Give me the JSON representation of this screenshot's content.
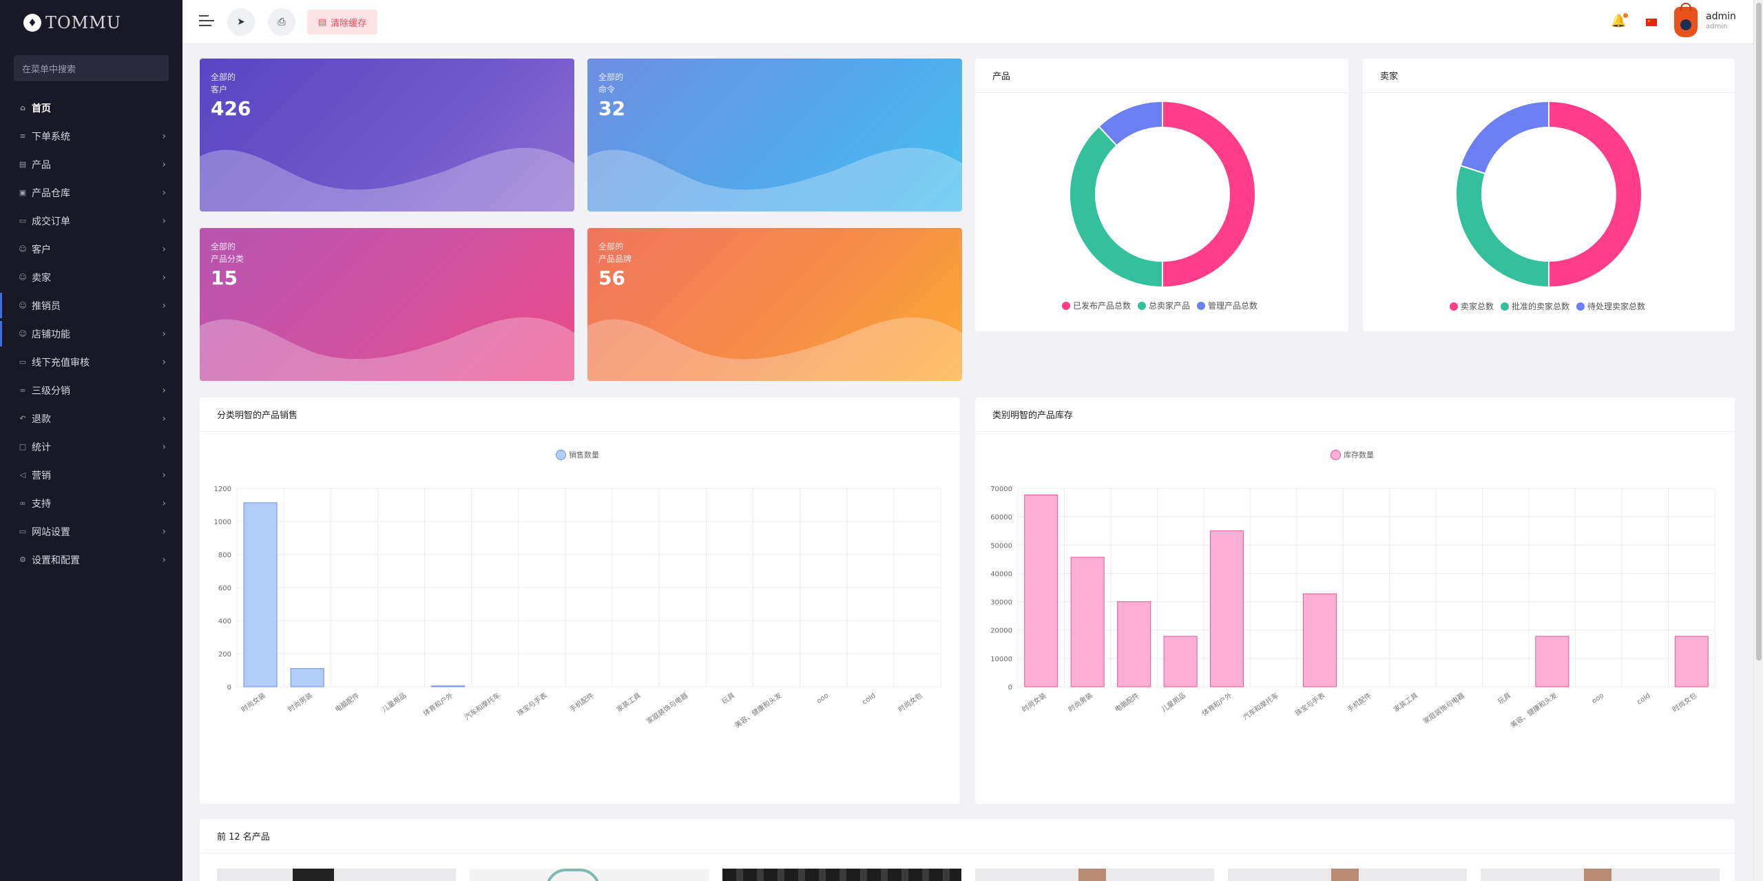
{
  "brand": {
    "name": "TOMMU"
  },
  "sidebar": {
    "search_placeholder": "在菜单中搜索",
    "items": [
      {
        "label": "首页",
        "icon": "home-icon"
      },
      {
        "label": "下单系统",
        "icon": "list-icon"
      },
      {
        "label": "产品",
        "icon": "cart-icon"
      },
      {
        "label": "产品仓库",
        "icon": "warehouse-icon"
      },
      {
        "label": "成交订单",
        "icon": "receipt-icon"
      },
      {
        "label": "客户",
        "icon": "users-icon"
      },
      {
        "label": "卖家",
        "icon": "user-icon"
      },
      {
        "label": "推销员",
        "icon": "user-icon"
      },
      {
        "label": "店铺功能",
        "icon": "user-icon"
      },
      {
        "label": "线下充值审核",
        "icon": "card-icon"
      },
      {
        "label": "三级分销",
        "icon": "link-icon"
      },
      {
        "label": "退款",
        "icon": "undo-icon"
      },
      {
        "label": "统计",
        "icon": "file-icon"
      },
      {
        "label": "营销",
        "icon": "megaphone-icon"
      },
      {
        "label": "支持",
        "icon": "link-icon"
      },
      {
        "label": "网站设置",
        "icon": "monitor-icon"
      },
      {
        "label": "设置和配置",
        "icon": "settings-icon"
      }
    ]
  },
  "topbar": {
    "clear_cache": "清除缓存",
    "user_name": "admin",
    "user_role": "admin"
  },
  "stats": [
    {
      "label_line1": "全部的",
      "label_line2": "客户",
      "value": "426"
    },
    {
      "label_line1": "全部的",
      "label_line2": "命令",
      "value": "32"
    },
    {
      "label_line1": "全部的",
      "label_line2": "产品分类",
      "value": "15"
    },
    {
      "label_line1": "全部的",
      "label_line2": "产品品牌",
      "value": "56"
    }
  ],
  "product_panel": {
    "title": "产品",
    "legend": [
      "已发布产品总数",
      "总卖家产品",
      "管理产品总数"
    ]
  },
  "seller_panel": {
    "title": "卖家",
    "legend": [
      "卖家总数",
      "批准的卖家总数",
      "待处理卖家总数"
    ]
  },
  "sales_panel": {
    "title": "分类明智的产品销售"
  },
  "stock_panel": {
    "title": "类别明智的产品库存"
  },
  "top_products": {
    "title": "前 12 名产品"
  },
  "colors": {
    "pink": "#ff3d8b",
    "teal": "#34c09d",
    "blue": "#6b7ff2",
    "sales_bar": "#b3cdfb",
    "stock_bar": "#fdb0d4"
  },
  "chart_data": [
    {
      "type": "pie",
      "title": "产品",
      "categories": [
        "已发布产品总数",
        "总卖家产品",
        "管理产品总数"
      ],
      "values": [
        50,
        38,
        12
      ]
    },
    {
      "type": "pie",
      "title": "卖家",
      "categories": [
        "卖家总数",
        "批准的卖家总数",
        "待处理卖家总数"
      ],
      "values": [
        50,
        30,
        20
      ]
    },
    {
      "type": "bar",
      "title": "分类明智的产品销售",
      "categories": [
        "时尚女装",
        "时尚男装",
        "电脑配件",
        "儿童用品",
        "体育和户外",
        "汽车和摩托车",
        "珠宝与手表",
        "手机配件",
        "家装工具",
        "家庭装饰与电器",
        "玩具",
        "美容、健康和头发",
        "ooo",
        "cold",
        "时尚女包"
      ],
      "series": [
        {
          "name": "销售数量",
          "values": [
            1113,
            110,
            0,
            0,
            5,
            0,
            0,
            0,
            0,
            0,
            0,
            0,
            0,
            0,
            0
          ]
        }
      ],
      "ylim": [
        0,
        1200
      ],
      "yticks": [
        0,
        200,
        400,
        600,
        800,
        1000,
        1200
      ]
    },
    {
      "type": "bar",
      "title": "类别明智的产品库存",
      "categories": [
        "时尚女装",
        "时尚男装",
        "电脑配件",
        "儿童用品",
        "体育和户外",
        "汽车和摩托车",
        "珠宝与手表",
        "手机配件",
        "家装工具",
        "家庭装饰与电器",
        "玩具",
        "美容、健康和头发",
        "ooo",
        "cold",
        "时尚女包"
      ],
      "series": [
        {
          "name": "库存数量",
          "values": [
            67700,
            45700,
            30000,
            17800,
            55000,
            0,
            32800,
            0,
            0,
            0,
            0,
            17800,
            0,
            0,
            17800
          ]
        }
      ],
      "ylim": [
        0,
        70000
      ],
      "yticks": [
        0,
        10000,
        20000,
        30000,
        40000,
        50000,
        60000,
        70000
      ]
    }
  ]
}
